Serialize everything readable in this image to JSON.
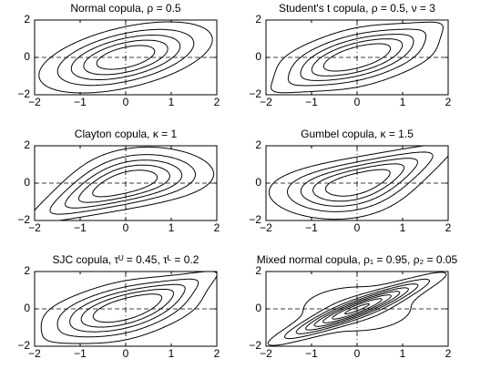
{
  "chart_data": [
    {
      "type": "contour",
      "title": "Normal copula, ρ = 0.5",
      "xlim": [
        -2,
        2
      ],
      "ylim": [
        -2,
        2
      ],
      "xticks": [
        {
          "value": -2,
          "label": "−2"
        },
        {
          "value": -1,
          "label": "−1"
        },
        0,
        1,
        2
      ],
      "yticks": [
        {
          "value": -2,
          "label": "−2"
        },
        0,
        2
      ]
    },
    {
      "type": "contour",
      "title": "Student's t copula, ρ = 0.5, ν = 3",
      "xlim": [
        -2,
        2
      ],
      "ylim": [
        -2,
        2
      ],
      "xticks": [
        {
          "value": -2,
          "label": "−2"
        },
        {
          "value": -1,
          "label": "−1"
        },
        0,
        1,
        2
      ],
      "yticks": [
        {
          "value": -2,
          "label": "−2"
        },
        0,
        2
      ]
    },
    {
      "type": "contour",
      "title": "Clayton copula, κ = 1",
      "xlim": [
        -2,
        2
      ],
      "ylim": [
        -2,
        2
      ],
      "xticks": [
        {
          "value": -2,
          "label": "−2"
        },
        {
          "value": -1,
          "label": "−1"
        },
        0,
        1,
        2
      ],
      "yticks": [
        {
          "value": -2,
          "label": "−2"
        },
        0,
        2
      ]
    },
    {
      "type": "contour",
      "title": "Gumbel copula, κ = 1.5",
      "xlim": [
        -2,
        2
      ],
      "ylim": [
        -2,
        2
      ],
      "xticks": [
        {
          "value": -2,
          "label": "−2"
        },
        {
          "value": -1,
          "label": "−1"
        },
        0,
        1,
        2
      ],
      "yticks": [
        {
          "value": -2,
          "label": "−2"
        },
        0,
        2
      ]
    },
    {
      "type": "contour",
      "title": "SJC copula, τᵁ = 0.45, τᴸ = 0.2",
      "xlim": [
        -2,
        2
      ],
      "ylim": [
        -2,
        2
      ],
      "xticks": [
        {
          "value": -2,
          "label": "−2"
        },
        {
          "value": -1,
          "label": "−1"
        },
        0,
        1,
        2
      ],
      "yticks": [
        {
          "value": -2,
          "label": "−2"
        },
        0,
        2
      ]
    },
    {
      "type": "contour",
      "title": "Mixed normal copula, ρ₁ = 0.95, ρ₂ = 0.05",
      "xlim": [
        -2,
        2
      ],
      "ylim": [
        -2,
        2
      ],
      "xticks": [
        {
          "value": -2,
          "label": "−2"
        },
        {
          "value": -1,
          "label": "−1"
        },
        0,
        1,
        2
      ],
      "yticks": [
        {
          "value": -2,
          "label": "−2"
        },
        0,
        2
      ]
    }
  ]
}
